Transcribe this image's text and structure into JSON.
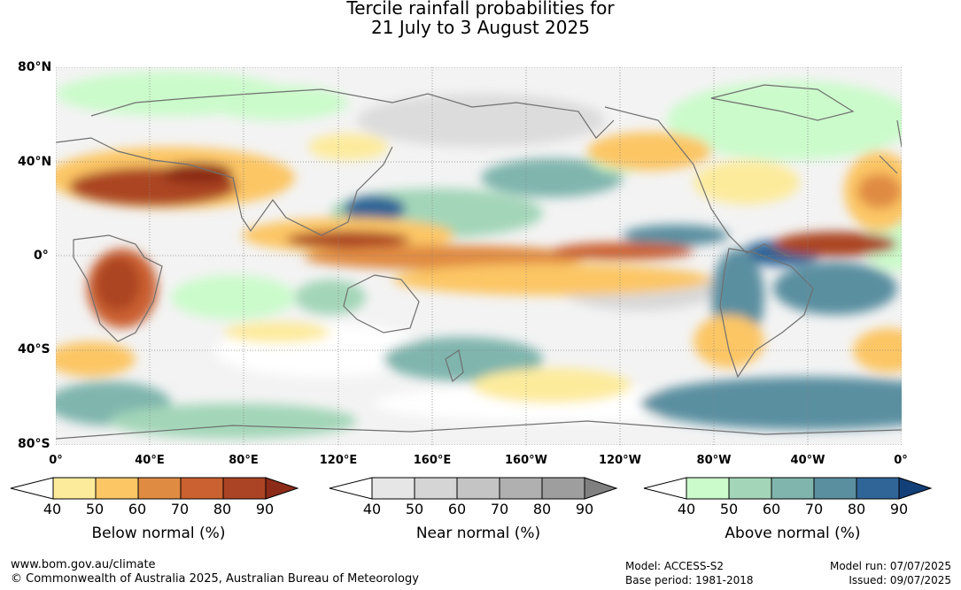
{
  "title": {
    "line1": "Tercile rainfall probabilities for",
    "line2": "21 July to 3 August 2025"
  },
  "map": {
    "lat_labels": [
      "80°N",
      "40°N",
      "0°",
      "40°S",
      "80°S"
    ],
    "lon_labels": [
      "0°",
      "40°E",
      "80°E",
      "120°E",
      "160°E",
      "160°W",
      "120°W",
      "80°W",
      "40°W",
      "0°"
    ]
  },
  "legends": [
    {
      "title": "Below normal (%)",
      "ticks": [
        "40",
        "50",
        "60",
        "70",
        "80",
        "90"
      ],
      "colors": [
        "#ffffff",
        "#fdeb9c",
        "#fcc665",
        "#e08b42",
        "#cb6131",
        "#ab4424",
        "#8c2b17"
      ]
    },
    {
      "title": "Near normal (%)",
      "ticks": [
        "40",
        "50",
        "60",
        "70",
        "80",
        "90"
      ],
      "colors": [
        "#ffffff",
        "#e6e6e6",
        "#d5d5d5",
        "#c4c4c4",
        "#b0b0b0",
        "#9e9e9e",
        "#808080"
      ]
    },
    {
      "title": "Above normal (%)",
      "ticks": [
        "40",
        "50",
        "60",
        "70",
        "80",
        "90"
      ],
      "colors": [
        "#ffffff",
        "#cbfbcb",
        "#a3d6b8",
        "#7fb5ad",
        "#5a8fa0",
        "#2f6597",
        "#133f78"
      ]
    }
  ],
  "footer": {
    "website": "www.bom.gov.au/climate",
    "copyright": "© Commonwealth of Australia 2025, Australian Bureau of Meteorology",
    "model": "Model: ACCESS-S2",
    "base_period": "Base period: 1981-2018",
    "model_run": "Model run: 07/07/2025",
    "issued": "Issued: 09/07/2025"
  }
}
